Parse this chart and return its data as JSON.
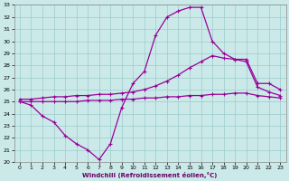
{
  "xlabel": "Windchill (Refroidissement éolien,°C)",
  "xlim": [
    -0.5,
    23.5
  ],
  "ylim": [
    20,
    33
  ],
  "yticks": [
    20,
    21,
    22,
    23,
    24,
    25,
    26,
    27,
    28,
    29,
    30,
    31,
    32,
    33
  ],
  "xticks": [
    0,
    1,
    2,
    3,
    4,
    5,
    6,
    7,
    8,
    9,
    10,
    11,
    12,
    13,
    14,
    15,
    16,
    17,
    18,
    19,
    20,
    21,
    22,
    23
  ],
  "bg_color": "#cce9e9",
  "grid_color": "#99cccc",
  "line_color": "#990099",
  "line1_x": [
    0,
    1,
    2,
    3,
    4,
    5,
    6,
    7,
    8,
    9,
    10,
    11,
    12,
    13,
    14,
    15,
    16,
    17,
    18,
    19,
    20,
    21,
    22,
    23
  ],
  "line1_y": [
    25.0,
    24.7,
    23.8,
    23.3,
    22.2,
    21.5,
    21.0,
    20.2,
    21.5,
    24.5,
    26.5,
    27.5,
    30.5,
    32.0,
    32.5,
    32.8,
    32.8,
    30.0,
    29.0,
    28.5,
    28.5,
    26.5,
    26.5,
    26.0
  ],
  "line2_x": [
    0,
    1,
    2,
    3,
    4,
    5,
    6,
    7,
    8,
    9,
    10,
    11,
    12,
    13,
    14,
    15,
    16,
    17,
    18,
    19,
    20,
    21,
    22,
    23
  ],
  "line2_y": [
    25.2,
    25.2,
    25.3,
    25.4,
    25.4,
    25.5,
    25.5,
    25.6,
    25.6,
    25.7,
    25.8,
    26.0,
    26.3,
    26.7,
    27.2,
    27.8,
    28.3,
    28.8,
    28.6,
    28.5,
    28.3,
    26.2,
    25.8,
    25.5
  ],
  "line3_x": [
    0,
    1,
    2,
    3,
    4,
    5,
    6,
    7,
    8,
    9,
    10,
    11,
    12,
    13,
    14,
    15,
    16,
    17,
    18,
    19,
    20,
    21,
    22,
    23
  ],
  "line3_y": [
    25.0,
    25.0,
    25.0,
    25.0,
    25.0,
    25.0,
    25.1,
    25.1,
    25.1,
    25.2,
    25.2,
    25.3,
    25.3,
    25.4,
    25.4,
    25.5,
    25.5,
    25.6,
    25.6,
    25.7,
    25.7,
    25.5,
    25.4,
    25.3
  ]
}
